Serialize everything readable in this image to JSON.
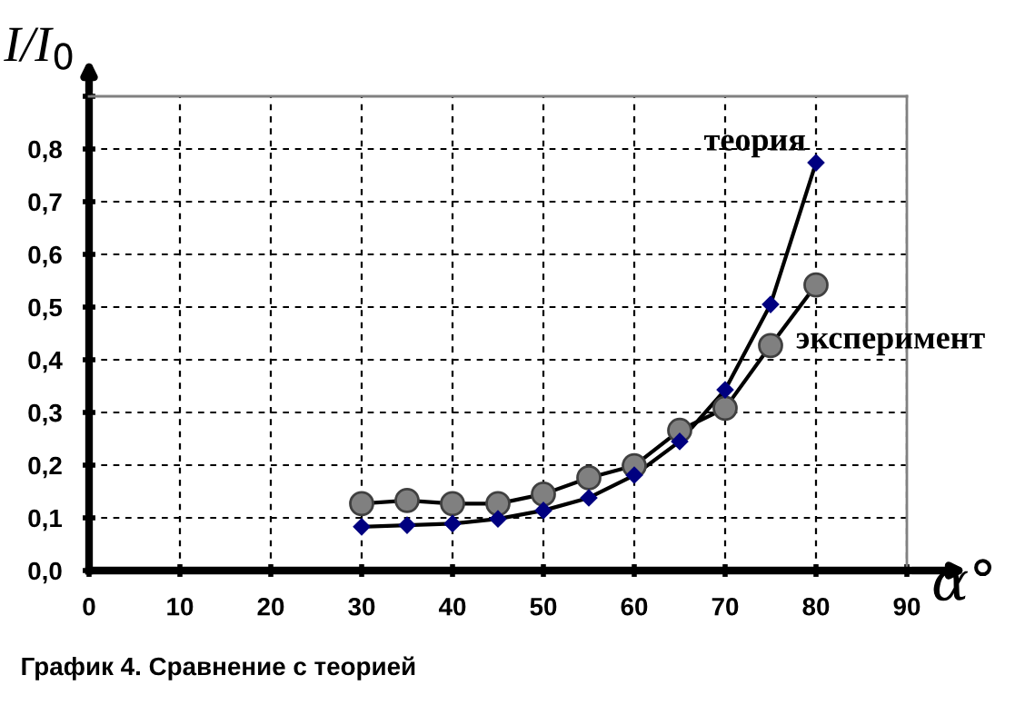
{
  "chart_data": {
    "type": "line",
    "title": "График 4. Сравнение с теорией",
    "xlabel": "α°",
    "ylabel": "I/I$_{0}$",
    "x": [
      30,
      35,
      40,
      45,
      50,
      55,
      60,
      65,
      70,
      75,
      80
    ],
    "series": [
      {
        "name": "теория",
        "color": "#000080",
        "marker": "diamond",
        "values": [
          0.083,
          0.086,
          0.089,
          0.098,
          0.114,
          0.138,
          0.181,
          0.245,
          0.343,
          0.505,
          0.774
        ]
      },
      {
        "name": "эксперимент",
        "color": "#808080",
        "marker": "circle",
        "values": [
          0.127,
          0.133,
          0.127,
          0.127,
          0.145,
          0.176,
          0.199,
          0.266,
          0.308,
          0.427,
          0.542
        ]
      }
    ],
    "xlim": [
      0,
      90
    ],
    "xticks": [
      0,
      10,
      20,
      30,
      40,
      50,
      60,
      70,
      80,
      90
    ],
    "ylim": [
      0,
      0.9
    ],
    "yticks": [
      {
        "value": 0,
        "label": "0,0"
      },
      {
        "value": 0.1,
        "label": "0,1"
      },
      {
        "value": 0.2,
        "label": "0,2"
      },
      {
        "value": 0.3,
        "label": "0,3"
      },
      {
        "value": 0.4,
        "label": "0,4"
      },
      {
        "value": 0.5,
        "label": "0,5"
      },
      {
        "value": 0.6,
        "label": "0,6"
      },
      {
        "value": 0.7,
        "label": "0,7"
      },
      {
        "value": 0.8,
        "label": "0,8"
      },
      {
        "value": 0.9,
        "label": null
      }
    ],
    "grid": true,
    "line_style": "solid",
    "legend": false
  }
}
